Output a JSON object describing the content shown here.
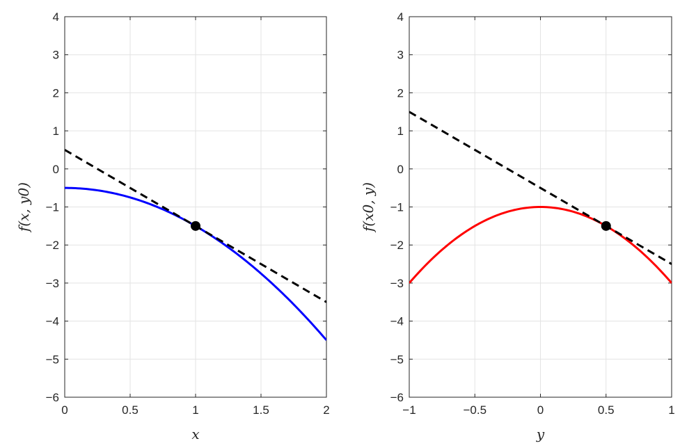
{
  "chart_data": [
    {
      "type": "line",
      "xlabel": "x",
      "ylabel": "f(x, y0)",
      "xlim": [
        0,
        2
      ],
      "ylim": [
        -6,
        4
      ],
      "xticks": [
        "0",
        "0.5",
        "1",
        "1.5",
        "2"
      ],
      "yticks": [
        "4",
        "3",
        "2",
        "1",
        "0",
        "−1",
        "−2",
        "−3",
        "−4",
        "−5",
        "−6"
      ],
      "grid": true,
      "series": [
        {
          "kind": "curve",
          "color": "#0000ff",
          "style": "solid",
          "x": [
            0,
            0.2,
            0.4,
            0.6,
            0.8,
            1.0,
            1.2,
            1.4,
            1.6,
            1.8,
            2.0
          ],
          "y": [
            -0.5,
            -0.54,
            -0.66,
            -0.86,
            -1.14,
            -1.5,
            -1.94,
            -2.46,
            -3.06,
            -3.74,
            -4.5
          ]
        },
        {
          "kind": "tangent",
          "color": "#000000",
          "style": "dashed",
          "x": [
            0,
            2
          ],
          "y": [
            0.5,
            -3.5
          ]
        },
        {
          "kind": "point",
          "color": "#000000",
          "x": [
            1
          ],
          "y": [
            -1.5
          ]
        }
      ]
    },
    {
      "type": "line",
      "xlabel": "y",
      "ylabel": "f(x0, y)",
      "xlim": [
        -1,
        1
      ],
      "ylim": [
        -6,
        4
      ],
      "xticks": [
        "−1",
        "−0.5",
        "0",
        "0.5",
        "1"
      ],
      "yticks": [
        "4",
        "3",
        "2",
        "1",
        "0",
        "−1",
        "−2",
        "−3",
        "−4",
        "−5",
        "−6"
      ],
      "grid": true,
      "series": [
        {
          "kind": "curve",
          "color": "#ff0000",
          "style": "solid",
          "x": [
            -1,
            -0.8,
            -0.6,
            -0.4,
            -0.2,
            0,
            0.2,
            0.4,
            0.6,
            0.8,
            1
          ],
          "y": [
            -3,
            -2.28,
            -1.72,
            -1.32,
            -1.08,
            -1,
            -1.08,
            -1.32,
            -1.72,
            -2.28,
            -3
          ]
        },
        {
          "kind": "tangent",
          "color": "#000000",
          "style": "dashed",
          "x": [
            -1,
            1
          ],
          "y": [
            1.5,
            -2.5
          ]
        },
        {
          "kind": "point",
          "color": "#000000",
          "x": [
            0.5
          ],
          "y": [
            -1.5
          ]
        }
      ]
    }
  ]
}
